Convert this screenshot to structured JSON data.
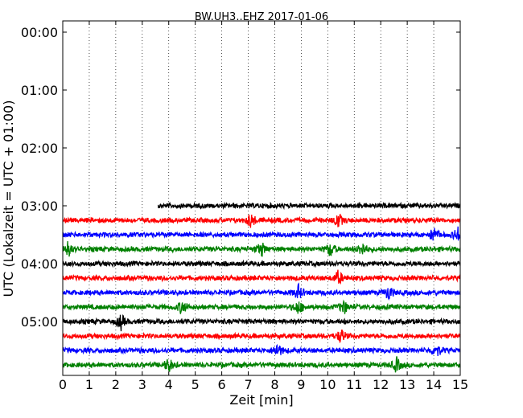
{
  "chart_data": {
    "type": "line",
    "title": "BW.UH3..EHZ 2017-01-06",
    "xlabel": "Zeit  [min]",
    "ylabel": "UTC (Lokalzeit = UTC + 01:00)",
    "xlim": [
      0,
      15
    ],
    "ylim_hours_utc": [
      0,
      6.0
    ],
    "x_ticks": [
      "0",
      "1",
      "2",
      "3",
      "4",
      "5",
      "6",
      "7",
      "8",
      "9",
      "10",
      "11",
      "12",
      "13",
      "14",
      "15"
    ],
    "y_ticks": [
      "00:00",
      "01:00",
      "02:00",
      "03:00",
      "04:00",
      "05:00"
    ],
    "grid": "vertical dotted at each minute",
    "colors": [
      "#000000",
      "#ff0000",
      "#0000ff",
      "#008000"
    ],
    "series": [
      {
        "offset_utc": "03:00",
        "color": "#000000",
        "x_start_min": 3.6,
        "x_end_min": 15,
        "events": []
      },
      {
        "offset_utc": "03:15",
        "color": "#ff0000",
        "x_start_min": 0,
        "x_end_min": 15,
        "events": [
          7.1,
          10.4
        ]
      },
      {
        "offset_utc": "03:30",
        "color": "#0000ff",
        "x_start_min": 0,
        "x_end_min": 15,
        "events": [
          14.0,
          14.9
        ]
      },
      {
        "offset_utc": "03:45",
        "color": "#008000",
        "x_start_min": 0,
        "x_end_min": 15,
        "events": [
          0.2,
          7.5,
          10.1,
          11.3
        ]
      },
      {
        "offset_utc": "04:00",
        "color": "#000000",
        "x_start_min": 0,
        "x_end_min": 15,
        "events": []
      },
      {
        "offset_utc": "04:15",
        "color": "#ff0000",
        "x_start_min": 0,
        "x_end_min": 15,
        "events": [
          10.4
        ]
      },
      {
        "offset_utc": "04:30",
        "color": "#0000ff",
        "x_start_min": 0,
        "x_end_min": 15,
        "events": [
          8.9,
          12.3
        ]
      },
      {
        "offset_utc": "04:45",
        "color": "#008000",
        "x_start_min": 0,
        "x_end_min": 15,
        "events": [
          4.5,
          8.9,
          10.6
        ]
      },
      {
        "offset_utc": "05:00",
        "color": "#000000",
        "x_start_min": 0,
        "x_end_min": 15,
        "events": [
          2.2
        ]
      },
      {
        "offset_utc": "05:15",
        "color": "#ff0000",
        "x_start_min": 0,
        "x_end_min": 15,
        "events": [
          10.5
        ]
      },
      {
        "offset_utc": "05:30",
        "color": "#0000ff",
        "x_start_min": 0,
        "x_end_min": 15,
        "events": [
          8.1,
          14.1
        ]
      },
      {
        "offset_utc": "05:45",
        "color": "#008000",
        "x_start_min": 0,
        "x_end_min": 15,
        "events": [
          4.0,
          12.6
        ]
      }
    ]
  }
}
